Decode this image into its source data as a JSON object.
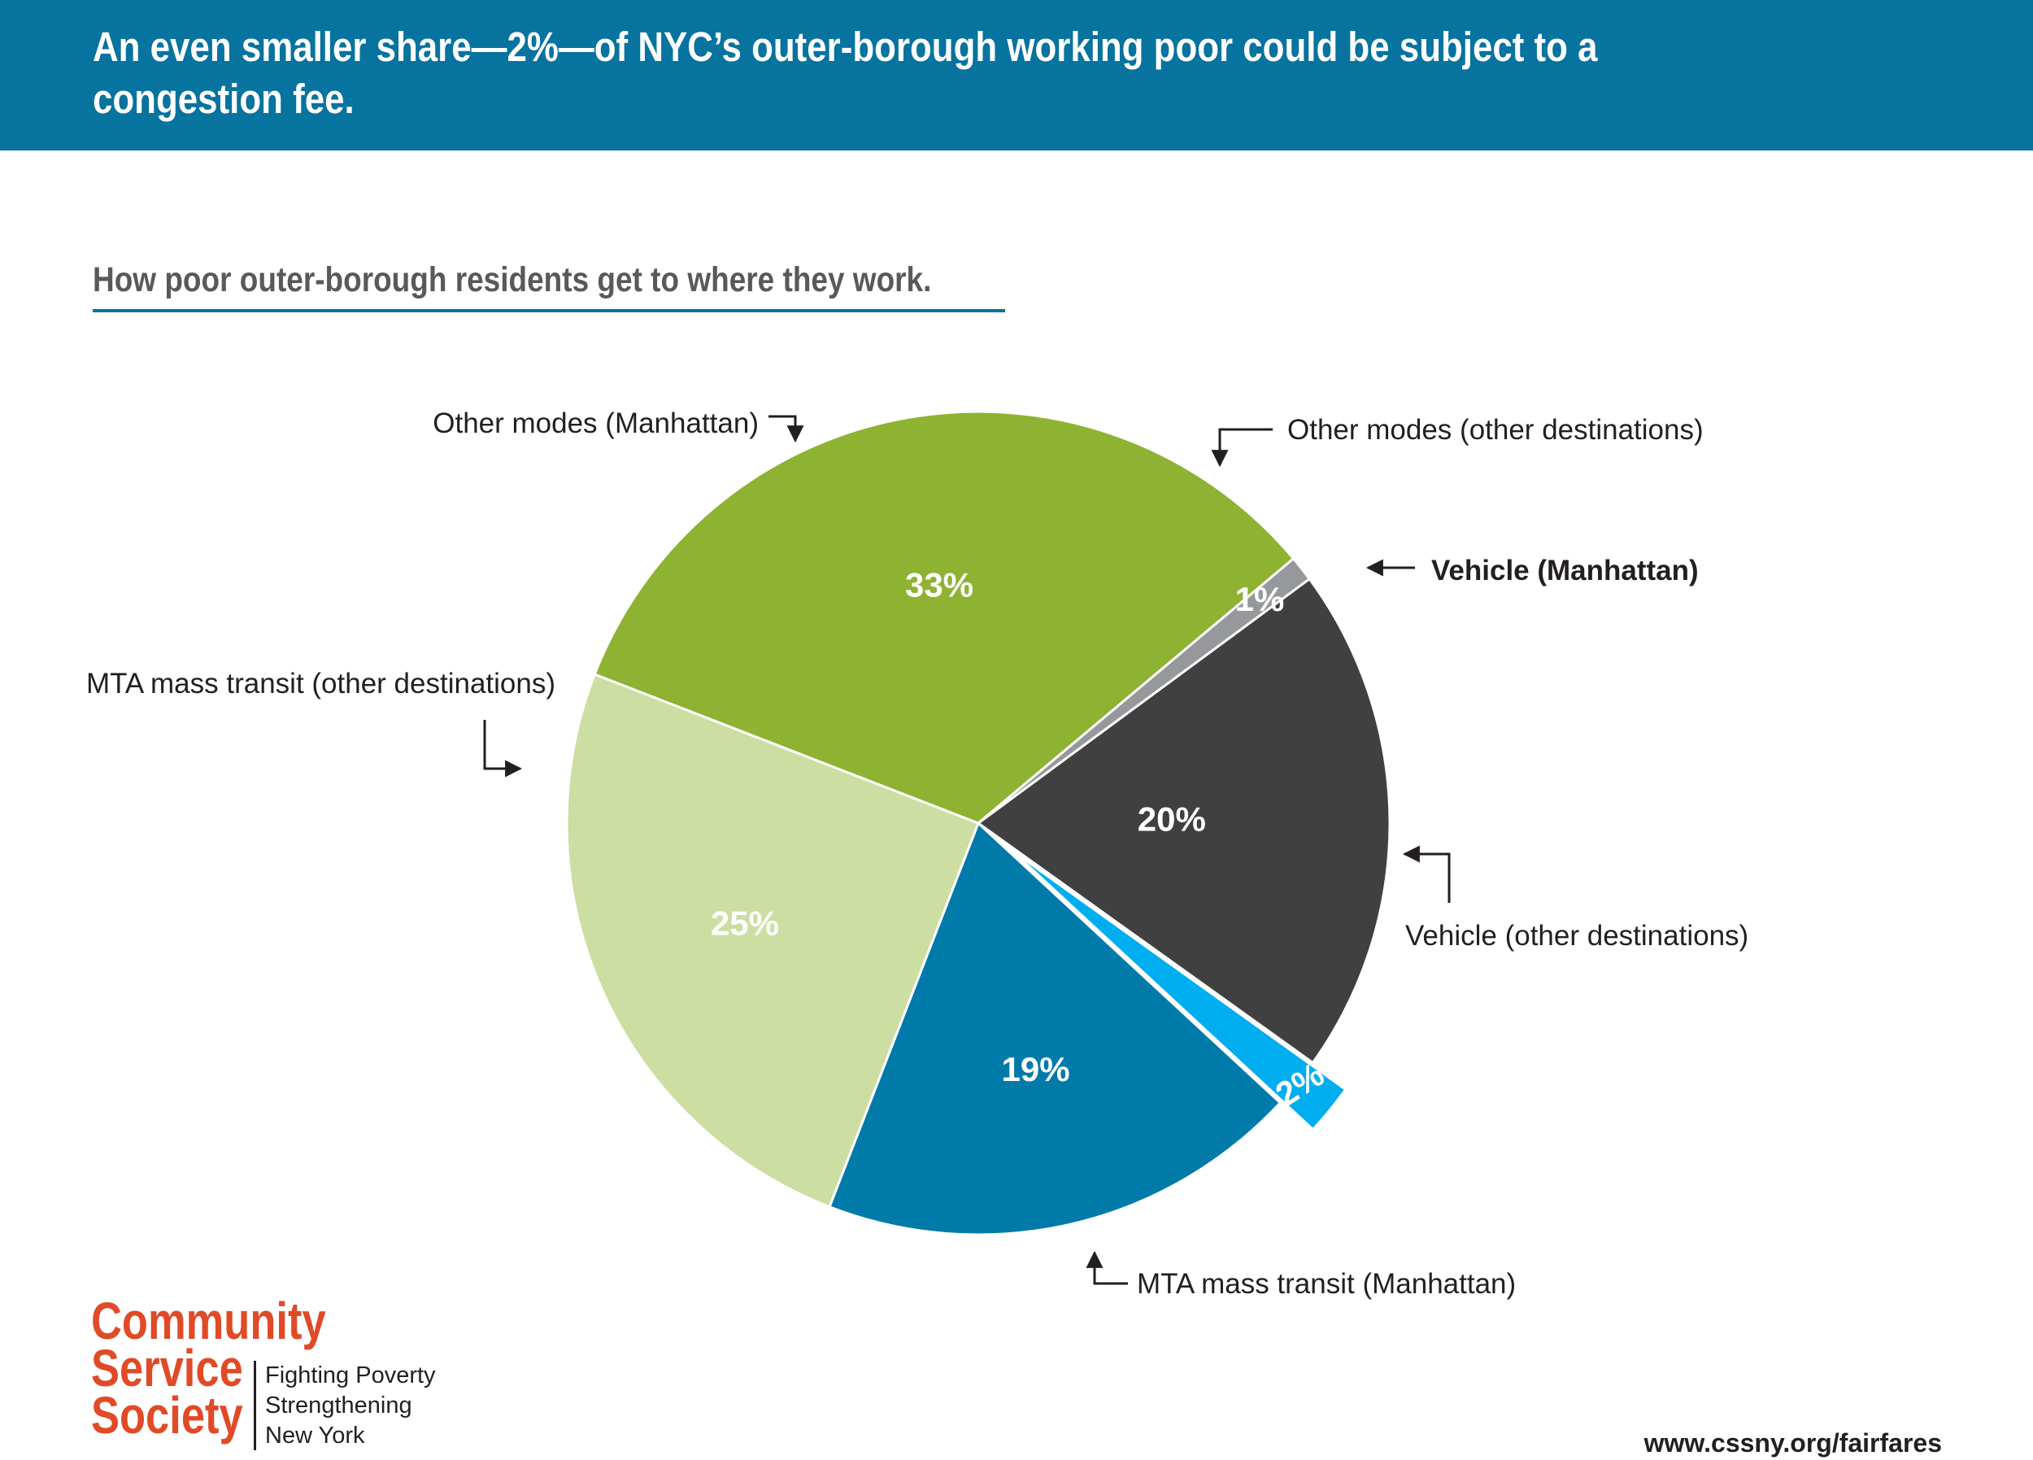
{
  "header": {
    "title": "An even smaller share—2%—of NYC’s outer-borough working poor could be subject to a congestion fee."
  },
  "subtitle": "How poor outer-borough residents get to where they work.",
  "colors": {
    "banner": "#07739f",
    "other_modes_manhattan": "#97989b",
    "other_modes_other": "#404040",
    "vehicle_manhattan": "#00aeef",
    "vehicle_other": "#007ba9",
    "mta_manhattan": "#ccdea2",
    "mta_other": "#8eb232",
    "brand": "#e04a26"
  },
  "chart_data": {
    "type": "pie",
    "unit": "%",
    "slices": [
      {
        "label": "Other modes (other destinations)",
        "value": 20,
        "value_label": "20%",
        "color": "#404040",
        "exploded": false,
        "bold": false
      },
      {
        "label": "Vehicle (Manhattan)",
        "value": 2,
        "value_label": "2%",
        "color": "#00aeef",
        "exploded": true,
        "bold": true
      },
      {
        "label": "Vehicle (other destinations)",
        "value": 19,
        "value_label": "19%",
        "color": "#007ba9",
        "exploded": false,
        "bold": false
      },
      {
        "label": "MTA mass transit (Manhattan)",
        "value": 25,
        "value_label": "25%",
        "color": "#ccdea2",
        "exploded": false,
        "bold": false
      },
      {
        "label": "MTA mass transit (other destinations)",
        "value": 33,
        "value_label": "33%",
        "color": "#8eb232",
        "exploded": false,
        "bold": false
      },
      {
        "label": "Other modes (Manhattan)",
        "value": 1,
        "value_label": "1%",
        "color": "#97989b",
        "exploded": false,
        "bold": false
      }
    ]
  },
  "logo": {
    "name": "Community\nService\nSociety",
    "tagline": "Fighting Poverty\nStrengthening\nNew York"
  },
  "footer": {
    "url": "www.cssny.org/fairfares"
  }
}
